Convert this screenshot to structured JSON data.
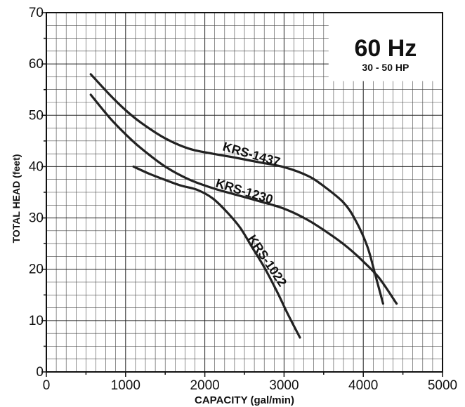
{
  "chart_data": {
    "type": "line",
    "title": "60 Hz",
    "subtitle": "30 - 50 HP",
    "xlabel": "CAPACITY (gal/min)",
    "ylabel": "TOTAL HEAD (feet)",
    "xlim": [
      0,
      5000
    ],
    "ylim": [
      0,
      70
    ],
    "x_ticks": [
      "0",
      "1000",
      "2000",
      "3000",
      "4000",
      "5000"
    ],
    "y_ticks": [
      "0",
      "10",
      "20",
      "30",
      "40",
      "50",
      "60",
      "70"
    ],
    "grid": true,
    "series": [
      {
        "name": "KRS-1437",
        "x": [
          560,
          800,
          1000,
          1200,
          1500,
          1800,
          2100,
          2400,
          2700,
          3000,
          3300,
          3500,
          3750,
          3900,
          4050,
          4150,
          4250
        ],
        "y": [
          58,
          54,
          51,
          48.5,
          45.5,
          43.5,
          42.5,
          41.7,
          40.8,
          39.9,
          38.2,
          36.2,
          33,
          29.6,
          24.5,
          19,
          13.3
        ]
      },
      {
        "name": "KRS-1230",
        "x": [
          560,
          800,
          1000,
          1200,
          1500,
          1800,
          2100,
          2400,
          2700,
          3000,
          3300,
          3600,
          3800,
          4000,
          4200,
          4420
        ],
        "y": [
          54,
          49.5,
          46.3,
          43.5,
          40,
          37.5,
          35.8,
          34.5,
          33.2,
          31.8,
          29.6,
          26.6,
          24.3,
          21.5,
          18.3,
          13.3
        ]
      },
      {
        "name": "KRS-1022",
        "x": [
          1100,
          1300,
          1500,
          1700,
          1900,
          2100,
          2300,
          2450,
          2600,
          2750,
          2900,
          3050,
          3200
        ],
        "y": [
          40,
          38.6,
          37.4,
          36.3,
          35.5,
          33.8,
          30.8,
          28,
          24.2,
          20.4,
          16,
          11.2,
          6.7
        ]
      }
    ]
  }
}
